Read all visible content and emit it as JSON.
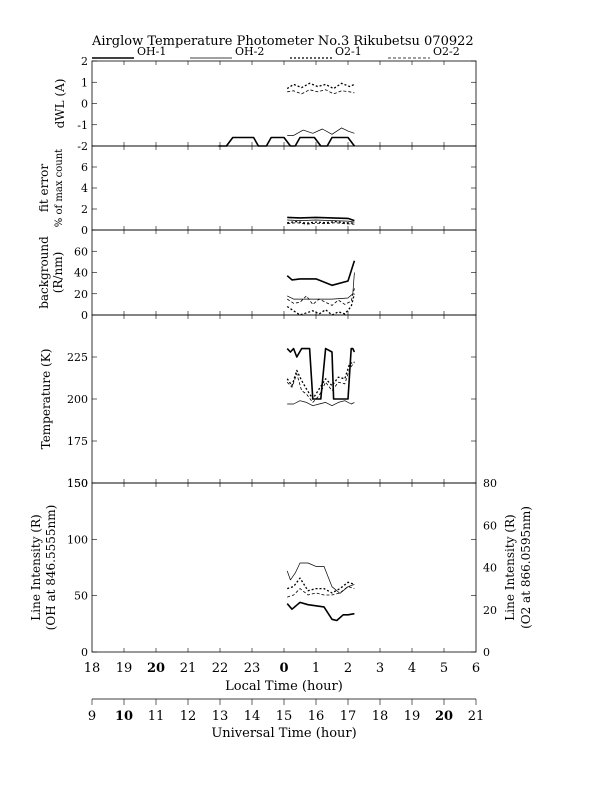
{
  "title": "Airglow Temperature Photometer No.3   Rikubetsu   070922",
  "legend": {
    "entries": [
      {
        "label": "OH-1",
        "style": "thick"
      },
      {
        "label": "OH-2",
        "style": "thin"
      },
      {
        "label": "O2-1",
        "style": "dotted"
      },
      {
        "label": "O2-2",
        "style": "dashed"
      }
    ]
  },
  "x_axes": {
    "local_time": {
      "label": "Local Time (hour)",
      "ticks": [
        "18",
        "19",
        "20",
        "21",
        "22",
        "23",
        "0",
        "1",
        "2",
        "3",
        "4",
        "5",
        "6"
      ],
      "bold_ticks": [
        "20",
        "0"
      ]
    },
    "universal_time": {
      "label": "Universal Time (hour)",
      "ticks": [
        "9",
        "10",
        "11",
        "12",
        "13",
        "14",
        "15",
        "16",
        "17",
        "18",
        "19",
        "20",
        "21"
      ],
      "bold_ticks": [
        "10",
        "20"
      ]
    }
  },
  "chart_data": [
    {
      "type": "line",
      "ylabel": "dWL (A)",
      "ylim": [
        -2,
        2
      ],
      "yticks": [
        "-2",
        "-1",
        "0",
        "1",
        "2"
      ],
      "x_unit": "local time hours after 18:00",
      "series": [
        {
          "name": "OH-1",
          "style": "thick",
          "x": [
            3.95,
            4.2,
            4.4,
            4.55,
            5.05,
            5.2,
            5.45,
            5.6,
            6.0,
            6.2,
            6.35,
            6.5,
            6.95,
            7.15,
            7.35,
            7.5,
            8.0,
            8.2
          ],
          "values": [
            -2.0,
            -2.0,
            -1.6,
            -1.6,
            -1.6,
            -2.0,
            -2.0,
            -1.6,
            -1.6,
            -2.0,
            -2.0,
            -1.6,
            -1.6,
            -2.0,
            -2.0,
            -1.6,
            -1.6,
            -2.0
          ]
        },
        {
          "name": "OH-2",
          "style": "thin",
          "x": [
            6.1,
            6.3,
            6.6,
            6.9,
            7.2,
            7.5,
            7.8,
            8.0,
            8.2
          ],
          "values": [
            -1.5,
            -1.5,
            -1.25,
            -1.4,
            -1.2,
            -1.45,
            -1.15,
            -1.3,
            -1.4
          ]
        },
        {
          "name": "O2-1",
          "style": "dotted",
          "x": [
            6.1,
            6.3,
            6.55,
            6.8,
            7.05,
            7.3,
            7.55,
            7.8,
            8.05,
            8.2
          ],
          "values": [
            0.7,
            0.9,
            0.75,
            0.95,
            0.8,
            0.9,
            0.7,
            0.95,
            0.8,
            0.9
          ]
        },
        {
          "name": "O2-2",
          "style": "dashed",
          "x": [
            6.1,
            6.3,
            6.55,
            6.8,
            7.05,
            7.3,
            7.55,
            7.8,
            8.05,
            8.2
          ],
          "values": [
            0.55,
            0.6,
            0.45,
            0.65,
            0.55,
            0.65,
            0.45,
            0.6,
            0.55,
            0.5
          ]
        }
      ]
    },
    {
      "type": "line",
      "ylabel": "fit error",
      "ylabel2": "% of max count",
      "ylim": [
        0,
        8
      ],
      "yticks": [
        "0",
        "2",
        "4",
        "6"
      ],
      "x_unit": "local time hours after 18:00",
      "series": [
        {
          "name": "OH-1",
          "style": "thick",
          "x": [
            6.1,
            6.5,
            7.0,
            7.5,
            8.0,
            8.2
          ],
          "values": [
            1.2,
            1.15,
            1.2,
            1.15,
            1.1,
            0.9
          ]
        },
        {
          "name": "OH-2",
          "style": "thin",
          "x": [
            6.1,
            6.5,
            7.0,
            7.5,
            8.0,
            8.2
          ],
          "values": [
            0.95,
            0.9,
            0.95,
            0.9,
            0.85,
            0.75
          ]
        },
        {
          "name": "O2-1",
          "style": "dotted",
          "x": [
            6.1,
            6.4,
            6.7,
            7.0,
            7.3,
            7.6,
            7.9,
            8.2
          ],
          "values": [
            0.7,
            0.8,
            0.65,
            0.75,
            0.7,
            0.8,
            0.7,
            0.65
          ]
        },
        {
          "name": "O2-2",
          "style": "dashed",
          "x": [
            6.1,
            6.4,
            6.7,
            7.0,
            7.3,
            7.6,
            7.9,
            8.2
          ],
          "values": [
            0.6,
            0.7,
            0.55,
            0.65,
            0.6,
            0.7,
            0.6,
            0.55
          ]
        }
      ]
    },
    {
      "type": "line",
      "ylabel": "background",
      "ylabel2": "(R/nm)",
      "ylim": [
        0,
        80
      ],
      "yticks": [
        "0",
        "20",
        "40",
        "60"
      ],
      "x_unit": "local time hours after 18:00",
      "series": [
        {
          "name": "OH-1",
          "style": "thick",
          "x": [
            6.1,
            6.25,
            6.5,
            7.0,
            7.5,
            8.0,
            8.2
          ],
          "values": [
            37,
            33,
            34,
            34,
            28,
            32,
            51
          ]
        },
        {
          "name": "OH-2",
          "style": "thin",
          "x": [
            6.1,
            6.3,
            6.5,
            7.0,
            7.5,
            8.0,
            8.15,
            8.2
          ],
          "values": [
            18,
            15,
            15,
            15,
            15,
            16,
            20,
            40
          ]
        },
        {
          "name": "O2-1",
          "style": "dotted",
          "x": [
            6.1,
            6.3,
            6.5,
            6.7,
            6.9,
            7.1,
            7.3,
            7.5,
            7.7,
            7.9,
            8.1,
            8.2
          ],
          "values": [
            8,
            4,
            0,
            2,
            4,
            1,
            5,
            0,
            3,
            1,
            8,
            20
          ]
        },
        {
          "name": "O2-2",
          "style": "dashed",
          "x": [
            6.1,
            6.3,
            6.5,
            6.7,
            6.9,
            7.1,
            7.3,
            7.5,
            7.7,
            7.9,
            8.1,
            8.2
          ],
          "values": [
            15,
            11,
            12,
            18,
            10,
            15,
            12,
            9,
            14,
            10,
            13,
            25
          ]
        }
      ]
    },
    {
      "type": "line",
      "ylabel": "Temperature (K)",
      "ylim": [
        150,
        250
      ],
      "yticks": [
        "150",
        "175",
        "200",
        "225"
      ],
      "x_unit": "local time hours after 18:00",
      "series": [
        {
          "name": "OH-1",
          "style": "thick",
          "x": [
            6.1,
            6.2,
            6.3,
            6.4,
            6.55,
            6.8,
            6.9,
            7.15,
            7.3,
            7.5,
            7.55,
            7.6,
            7.65,
            8.0,
            8.1,
            8.15,
            8.2
          ],
          "values": [
            230,
            228,
            230,
            225,
            230,
            230,
            200,
            200,
            230,
            228,
            200,
            200,
            200,
            200,
            230,
            230,
            228
          ]
        },
        {
          "name": "OH-2",
          "style": "thin",
          "x": [
            6.1,
            6.3,
            6.5,
            6.7,
            6.9,
            7.1,
            7.3,
            7.5,
            7.7,
            7.9,
            8.1,
            8.2
          ],
          "values": [
            197,
            197,
            199,
            198,
            196,
            197,
            198,
            196,
            198,
            199,
            197,
            198
          ]
        },
        {
          "name": "O2-1",
          "style": "dotted",
          "x": [
            6.1,
            6.25,
            6.4,
            6.55,
            6.7,
            6.9,
            7.1,
            7.3,
            7.5,
            7.7,
            7.9,
            8.05,
            8.2
          ],
          "values": [
            212,
            208,
            217,
            211,
            206,
            200,
            206,
            212,
            208,
            213,
            212,
            221,
            222
          ]
        },
        {
          "name": "O2-2",
          "style": "dashed",
          "x": [
            6.1,
            6.25,
            6.4,
            6.55,
            6.7,
            6.9,
            7.1,
            7.3,
            7.5,
            7.7,
            7.9,
            8.05,
            8.2
          ],
          "values": [
            210,
            207,
            215,
            205,
            203,
            198,
            202,
            210,
            205,
            210,
            209,
            218,
            222
          ]
        }
      ]
    },
    {
      "type": "line",
      "ylabel": "Line Intensity (R)",
      "ylabel2": "(OH at 846.5555nm)",
      "ylabel_right": "Line Intensity (R)",
      "ylabel_right2": "(O2 at 866.0595nm)",
      "ylim": [
        0,
        150
      ],
      "ylim_right": [
        0,
        80
      ],
      "yticks": [
        "0",
        "50",
        "100",
        "150"
      ],
      "yticks_right": [
        "0",
        "20",
        "40",
        "60",
        "80"
      ],
      "x_unit": "local time hours after 18:00",
      "series": [
        {
          "name": "OH-1",
          "style": "thick",
          "axis": "left",
          "x": [
            6.1,
            6.25,
            6.5,
            6.75,
            7.0,
            7.25,
            7.5,
            7.65,
            7.85,
            8.0,
            8.2
          ],
          "values": [
            43,
            38,
            44,
            42,
            41,
            40,
            29,
            28,
            33,
            33,
            34
          ]
        },
        {
          "name": "OH-2",
          "style": "thin",
          "axis": "left",
          "x": [
            6.1,
            6.2,
            6.35,
            6.5,
            6.75,
            7.0,
            7.25,
            7.5,
            7.75,
            8.0,
            8.2
          ],
          "values": [
            72,
            64,
            70,
            79,
            79,
            76,
            76,
            58,
            52,
            58,
            60
          ]
        },
        {
          "name": "O2-1",
          "style": "dotted",
          "axis": "right",
          "x": [
            6.1,
            6.3,
            6.5,
            6.75,
            7.0,
            7.25,
            7.5,
            7.75,
            8.0,
            8.2
          ],
          "values": [
            30,
            31,
            35,
            29,
            30,
            30,
            28,
            30,
            33,
            32
          ]
        },
        {
          "name": "O2-2",
          "style": "dashed",
          "axis": "right",
          "x": [
            6.1,
            6.3,
            6.5,
            6.75,
            7.0,
            7.25,
            7.5,
            7.75,
            8.0,
            8.2
          ],
          "values": [
            26,
            27,
            30,
            27,
            28,
            27,
            27,
            28,
            31,
            30
          ]
        }
      ]
    }
  ]
}
